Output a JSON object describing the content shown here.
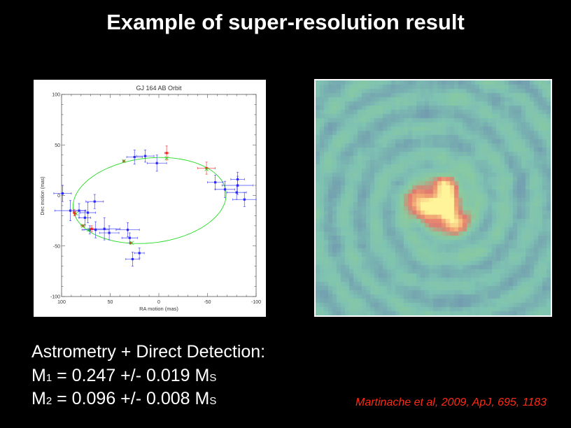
{
  "slide": {
    "title": "Example of super-resolution result",
    "text_lines": {
      "line1": "Astrometry + Direct Detection:",
      "m1_label": "M",
      "m1_sub": "1",
      "m1_value": " = 0.247 +/- 0.019 M",
      "m1_unit_sub": "S",
      "m2_label": "M",
      "m2_sub": "2",
      "m2_value": " = 0.096 +/- 0.008 M",
      "m2_unit_sub": "S"
    },
    "citation": "Martinache et al, 2009, ApJ, 695, 1183",
    "citation_color": "#ff2a14"
  },
  "image": {
    "description_colormap": [
      "#6a84ae",
      "#7fc3b2",
      "#8ccb9c",
      "#e27a6e",
      "#f2a874",
      "#fff49a"
    ]
  },
  "chart_data": {
    "type": "scatter",
    "title": "GJ 164 AB Orbit",
    "xlabel": "RA motion (mas)",
    "ylabel": "Dec motion (mas)",
    "xlim": [
      100,
      -100
    ],
    "ylim": [
      -100,
      100
    ],
    "xticks": [
      "100",
      "50",
      "0",
      "-50",
      "-100"
    ],
    "xtick_values": [
      100,
      50,
      0,
      -50,
      -100
    ],
    "yticks": [
      "100",
      "50",
      "0",
      "-50",
      "-100"
    ],
    "ytick_values": [
      100,
      50,
      0,
      -50,
      -100
    ],
    "grid": false,
    "colors": {
      "measured": "#2a2aff",
      "aperture_masking": "#ff1a1a",
      "fit": "#22dd22",
      "model_points": "#22dd22"
    },
    "series": [
      {
        "key": "measured",
        "points": [
          {
            "x": 99,
            "y": 2,
            "xerr": 9,
            "yerr": 8
          },
          {
            "x": 91,
            "y": -15,
            "xerr": 16,
            "yerr": 10
          },
          {
            "x": 82,
            "y": -15,
            "xerr": 6,
            "yerr": 7
          },
          {
            "x": 76,
            "y": -22,
            "xerr": 6,
            "yerr": 7
          },
          {
            "x": 73,
            "y": -17,
            "xerr": 8,
            "yerr": 10
          },
          {
            "x": 66,
            "y": -6,
            "xerr": 9,
            "yerr": 7
          },
          {
            "x": 71,
            "y": -34,
            "xerr": 6,
            "yerr": 4
          },
          {
            "x": 65,
            "y": -34,
            "xerr": 14,
            "yerr": 8
          },
          {
            "x": 56,
            "y": -33,
            "xerr": 16,
            "yerr": 11
          },
          {
            "x": 51,
            "y": -37,
            "xerr": 10,
            "yerr": 7
          },
          {
            "x": 32,
            "y": -34,
            "xerr": 12,
            "yerr": 7
          },
          {
            "x": 30,
            "y": -42,
            "xerr": 8,
            "yerr": 5
          },
          {
            "x": 20,
            "y": -57,
            "xerr": 5,
            "yerr": 5
          },
          {
            "x": 27,
            "y": -63,
            "xerr": 7,
            "yerr": 7
          },
          {
            "x": 25,
            "y": 38,
            "xerr": 8,
            "yerr": 7
          },
          {
            "x": 14,
            "y": 39,
            "xerr": 9,
            "yerr": 6
          },
          {
            "x": 2,
            "y": 32,
            "xerr": 10,
            "yerr": 8
          },
          {
            "x": -58,
            "y": 13,
            "xerr": 8,
            "yerr": 7
          },
          {
            "x": -68,
            "y": 6,
            "xerr": 10,
            "yerr": 8
          },
          {
            "x": -81,
            "y": 16,
            "xerr": 7,
            "yerr": 7
          },
          {
            "x": -81,
            "y": 10,
            "xerr": 16,
            "yerr": 9
          },
          {
            "x": -80,
            "y": 3,
            "xerr": 10,
            "yerr": 7
          },
          {
            "x": -88,
            "y": -4,
            "xerr": 12,
            "yerr": 7
          }
        ]
      },
      {
        "key": "aperture_masking",
        "points": [
          {
            "x": 36,
            "y": 34,
            "xerr": 1,
            "yerr": 1
          },
          {
            "x": -8,
            "y": 42,
            "xerr": 2,
            "yerr": 7
          },
          {
            "x": -49,
            "y": 27,
            "xerr": 9,
            "yerr": 6
          },
          {
            "x": 87,
            "y": -17,
            "xerr": 1,
            "yerr": 3
          },
          {
            "x": 86,
            "y": -18,
            "xerr": 1,
            "yerr": 2
          },
          {
            "x": 78,
            "y": -30,
            "xerr": 2,
            "yerr": 1
          },
          {
            "x": 69,
            "y": -33,
            "xerr": 2,
            "yerr": 3
          },
          {
            "x": 29,
            "y": -47,
            "xerr": 1,
            "yerr": 1
          }
        ]
      },
      {
        "key": "model_points",
        "points": [
          {
            "x": 36,
            "y": 34
          },
          {
            "x": -8,
            "y": 37
          },
          {
            "x": -49,
            "y": 26
          },
          {
            "x": 85,
            "y": -18
          },
          {
            "x": 78,
            "y": -30
          },
          {
            "x": 72,
            "y": -34
          },
          {
            "x": 28,
            "y": -47
          }
        ]
      }
    ],
    "orbit_fit": {
      "center": [
        9.5,
        -5
      ],
      "semi_major": 79,
      "semi_minor": 42,
      "rotation_deg": -6
    }
  }
}
